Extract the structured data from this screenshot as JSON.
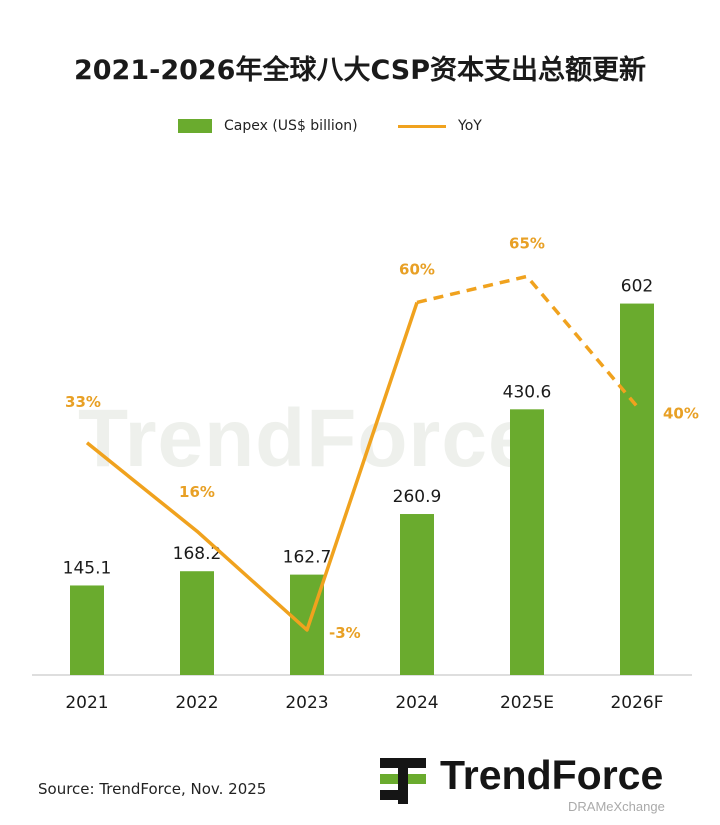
{
  "chart_data": {
    "type": "bar",
    "title": "2021-2026年全球八大CSP资本支出总额更新",
    "categories": [
      "2021",
      "2022",
      "2023",
      "2024",
      "2025E",
      "2026F"
    ],
    "series": [
      {
        "name": "Capex (US$ billion)",
        "type": "bar",
        "values": [
          145.1,
          168.2,
          162.7,
          260.9,
          430.6,
          602
        ],
        "labels": [
          "145.1",
          "168.2",
          "162.7",
          "260.9",
          "430.6",
          "602"
        ],
        "color": "#6aab2e"
      },
      {
        "name": "YoY",
        "type": "line",
        "values": [
          33,
          16,
          -3,
          60,
          65,
          40
        ],
        "labels": [
          "33%",
          "16%",
          "-3%",
          "60%",
          "65%",
          "40%"
        ],
        "projected_from_index": 3,
        "color": "#f0a21e"
      }
    ],
    "legend": "top"
  },
  "footer": {
    "source": "Source: TrendForce, Nov. 2025",
    "watermark": "TrendForce",
    "logo_text": "TrendForce",
    "logo_sub": "DRAMeXchange"
  }
}
